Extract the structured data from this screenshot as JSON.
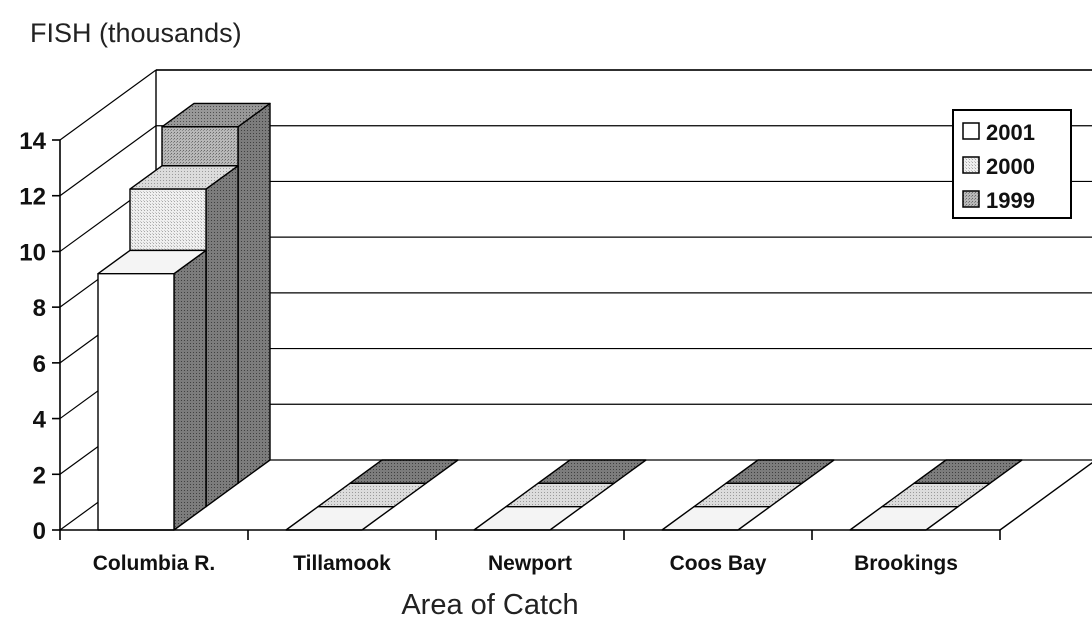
{
  "chart_data": {
    "type": "bar",
    "style": "3d-clustered",
    "ylabel": "FISH (thousands)",
    "xlabel": "Area of Catch",
    "categories": [
      "Columbia R.",
      "Tillamook",
      "Newport",
      "Coos Bay",
      "Brookings"
    ],
    "series": [
      {
        "name": "2001",
        "values": [
          9.2,
          0,
          0,
          0,
          0
        ]
      },
      {
        "name": "2000",
        "values": [
          11.4,
          0,
          0,
          0,
          0
        ]
      },
      {
        "name": "1999",
        "values": [
          12.8,
          0,
          0,
          0,
          0
        ]
      }
    ],
    "yticks": [
      0,
      2,
      4,
      6,
      8,
      10,
      12,
      14
    ],
    "ylim": [
      0,
      14
    ],
    "grid": true,
    "legend_position": "top-right",
    "colors": {
      "2001": "#ffffff",
      "2000": "#e8e8e8",
      "1999": "#b4b4b4"
    }
  }
}
